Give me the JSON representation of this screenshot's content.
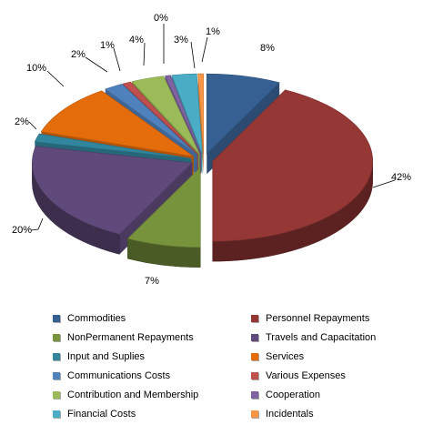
{
  "chart_data": {
    "type": "pie",
    "title": "",
    "legend_position": "bottom",
    "series": [
      {
        "name": "Commodities",
        "value": 8,
        "label": "8%",
        "color": "#376092"
      },
      {
        "name": "Personnel Repayments",
        "value": 42,
        "label": "42%",
        "color": "#953735"
      },
      {
        "name": "NonPermanent Repayments",
        "value": 7,
        "label": "7%",
        "color": "#77933c"
      },
      {
        "name": "Travels and Capacitation",
        "value": 20,
        "label": "20%",
        "color": "#604a7b"
      },
      {
        "name": "Input and Suplies",
        "value": 2,
        "label": "2%",
        "color": "#31859c"
      },
      {
        "name": "Services",
        "value": 10,
        "label": "10%",
        "color": "#e46c0a"
      },
      {
        "name": "Communications Costs",
        "value": 2,
        "label": "2%",
        "color": "#4f81bd"
      },
      {
        "name": "Various Expenses",
        "value": 1,
        "label": "1%",
        "color": "#c0504d"
      },
      {
        "name": "Contribution and Membership",
        "value": 4,
        "label": "4%",
        "color": "#9bbb59"
      },
      {
        "name": "Cooperation",
        "value": 0,
        "label": "0%",
        "color": "#8064a2"
      },
      {
        "name": "Financial Costs",
        "value": 3,
        "label": "3%",
        "color": "#4bacc6"
      },
      {
        "name": "Incidentals",
        "value": 1,
        "label": "1%",
        "color": "#f79646"
      }
    ]
  }
}
